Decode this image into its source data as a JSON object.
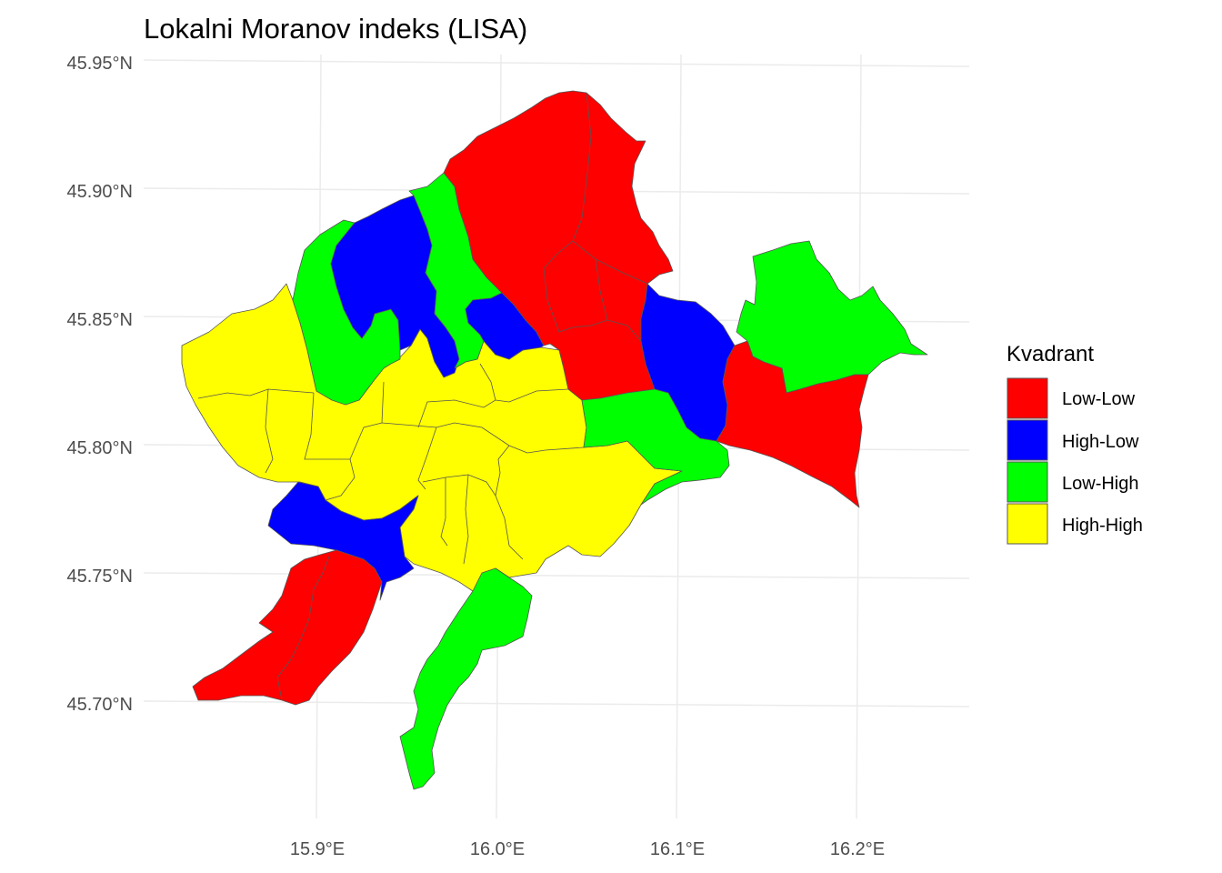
{
  "title": "Lokalni Moranov indeks (LISA)",
  "axes": {
    "y_ticks": [
      "45.95°N",
      "45.90°N",
      "45.85°N",
      "45.80°N",
      "45.75°N",
      "45.70°N"
    ],
    "x_ticks": [
      "15.9°E",
      "16.0°E",
      "16.1°E",
      "16.2°E"
    ]
  },
  "legend": {
    "title": "Kvadrant",
    "items": [
      {
        "label": "Low-Low",
        "color": "#FF0000"
      },
      {
        "label": "High-Low",
        "color": "#0000FF"
      },
      {
        "label": "Low-High",
        "color": "#00FF00"
      },
      {
        "label": "High-High",
        "color": "#FFFF00"
      }
    ]
  },
  "colors": {
    "Low-Low": "#FF0000",
    "High-Low": "#0000FF",
    "Low-High": "#00FF00",
    "High-High": "#FFFF00"
  }
}
